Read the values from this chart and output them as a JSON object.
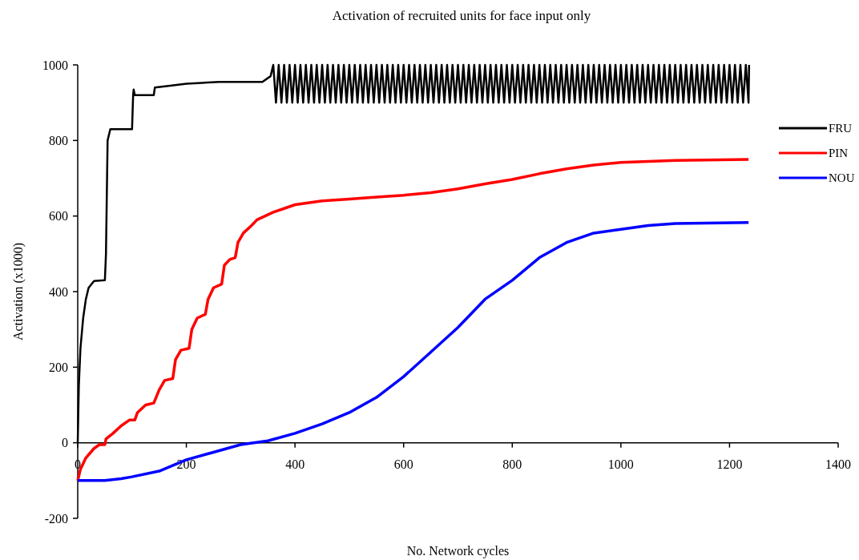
{
  "chart_data": {
    "type": "line",
    "title": "Activation of recruited units for face input only",
    "xlabel": "No. Network cycles",
    "ylabel": "Activation (x1000)",
    "xlim": [
      0,
      1400
    ],
    "xticks": [
      0,
      200,
      400,
      600,
      800,
      1000,
      1200,
      1400
    ],
    "ylim": [
      -200,
      1000
    ],
    "yticks": [
      -200,
      0,
      200,
      400,
      600,
      800,
      1000
    ],
    "grid": false,
    "legend": "right",
    "marker": "none",
    "line_style": "solid",
    "series": [
      {
        "name": "FRU",
        "color": "#000000",
        "x": [
          0,
          2,
          5,
          10,
          15,
          20,
          30,
          50,
          52,
          55,
          60,
          100,
          102,
          103,
          105,
          140,
          142,
          170,
          200,
          260,
          340,
          355,
          360,
          365,
          370,
          375,
          380,
          385,
          390,
          395,
          400,
          405,
          410,
          415,
          420,
          425,
          430,
          435,
          440,
          445,
          450,
          455,
          460,
          465,
          470,
          475,
          480,
          485,
          490,
          495,
          500,
          505,
          510,
          515,
          520,
          525,
          530,
          535,
          540,
          545,
          550,
          555,
          560,
          565,
          570,
          575,
          580,
          585,
          590,
          595,
          600,
          605,
          610,
          615,
          620,
          625,
          630,
          635,
          640,
          645,
          650,
          655,
          660,
          665,
          670,
          675,
          680,
          685,
          690,
          695,
          700,
          705,
          710,
          715,
          720,
          725,
          730,
          735,
          740,
          745,
          750,
          755,
          760,
          765,
          770,
          775,
          780,
          785,
          790,
          795,
          800,
          805,
          810,
          815,
          820,
          825,
          830,
          835,
          840,
          845,
          850,
          855,
          860,
          865,
          870,
          875,
          880,
          885,
          890,
          895,
          900,
          905,
          910,
          915,
          920,
          925,
          930,
          935,
          940,
          945,
          950,
          955,
          960,
          965,
          970,
          975,
          980,
          985,
          990,
          995,
          1000,
          1005,
          1010,
          1015,
          1020,
          1025,
          1030,
          1035,
          1040,
          1045,
          1050,
          1055,
          1060,
          1065,
          1070,
          1075,
          1080,
          1085,
          1090,
          1095,
          1100,
          1105,
          1110,
          1115,
          1120,
          1125,
          1130,
          1135,
          1140,
          1145,
          1150,
          1155,
          1160,
          1165,
          1170,
          1175,
          1180,
          1185,
          1190,
          1195,
          1200,
          1205,
          1210,
          1215,
          1220,
          1225,
          1230,
          1235,
          1236
        ],
        "values": [
          0,
          150,
          250,
          330,
          380,
          410,
          428,
          430,
          500,
          800,
          830,
          830,
          920,
          935,
          920,
          920,
          940,
          945,
          950,
          955,
          955,
          970,
          1000,
          900,
          1000,
          900,
          1000,
          900,
          1000,
          900,
          1000,
          900,
          1000,
          900,
          1000,
          900,
          1000,
          900,
          1000,
          900,
          1000,
          900,
          1000,
          900,
          1000,
          900,
          1000,
          900,
          1000,
          900,
          1000,
          900,
          1000,
          900,
          1000,
          900,
          1000,
          900,
          1000,
          900,
          1000,
          900,
          1000,
          900,
          1000,
          900,
          1000,
          900,
          1000,
          900,
          1000,
          900,
          1000,
          900,
          1000,
          900,
          1000,
          900,
          1000,
          900,
          1000,
          900,
          1000,
          900,
          1000,
          900,
          1000,
          900,
          1000,
          900,
          1000,
          900,
          1000,
          900,
          1000,
          900,
          1000,
          900,
          1000,
          900,
          1000,
          900,
          1000,
          900,
          1000,
          900,
          1000,
          900,
          1000,
          900,
          1000,
          900,
          1000,
          900,
          1000,
          900,
          1000,
          900,
          1000,
          900,
          1000,
          900,
          1000,
          900,
          1000,
          900,
          1000,
          900,
          1000,
          900,
          1000,
          900,
          1000,
          900,
          1000,
          900,
          1000,
          900,
          1000,
          900,
          1000,
          900,
          1000,
          900,
          1000,
          900,
          1000,
          900,
          1000,
          900,
          1000,
          900,
          1000,
          900,
          1000,
          900,
          1000,
          900,
          1000,
          900,
          1000,
          900,
          1000,
          900,
          1000,
          900,
          1000,
          900,
          1000,
          900,
          1000,
          900,
          1000,
          900,
          1000,
          900,
          1000,
          900,
          1000,
          900,
          1000,
          900,
          1000,
          900,
          1000,
          900,
          1000,
          900,
          1000,
          900,
          1000,
          900,
          1000,
          900,
          1000,
          900,
          1000,
          900,
          1000
        ]
      },
      {
        "name": "PIN",
        "color": "#ff0000",
        "x": [
          0,
          5,
          15,
          30,
          40,
          50,
          52,
          65,
          80,
          95,
          105,
          110,
          125,
          140,
          150,
          160,
          175,
          180,
          190,
          205,
          210,
          220,
          235,
          240,
          250,
          265,
          270,
          280,
          290,
          295,
          305,
          320,
          330,
          360,
          380,
          400,
          450,
          500,
          550,
          600,
          650,
          700,
          750,
          800,
          850,
          900,
          950,
          1000,
          1100,
          1235
        ],
        "values": [
          -100,
          -70,
          -40,
          -15,
          -5,
          -5,
          10,
          25,
          45,
          60,
          60,
          80,
          100,
          105,
          140,
          165,
          170,
          220,
          245,
          250,
          300,
          330,
          340,
          380,
          410,
          420,
          470,
          485,
          490,
          530,
          555,
          575,
          590,
          610,
          620,
          630,
          640,
          645,
          650,
          655,
          662,
          672,
          685,
          697,
          712,
          725,
          735,
          742,
          747,
          750
        ]
      },
      {
        "name": "NOU",
        "color": "#0000ff",
        "x": [
          0,
          50,
          80,
          100,
          150,
          200,
          250,
          300,
          350,
          400,
          450,
          500,
          550,
          600,
          650,
          700,
          750,
          800,
          850,
          900,
          950,
          1000,
          1050,
          1100,
          1235
        ],
        "values": [
          -100,
          -100,
          -95,
          -90,
          -75,
          -45,
          -25,
          -5,
          5,
          25,
          50,
          80,
          120,
          175,
          240,
          305,
          380,
          430,
          490,
          530,
          555,
          565,
          575,
          580,
          583
        ]
      }
    ]
  }
}
